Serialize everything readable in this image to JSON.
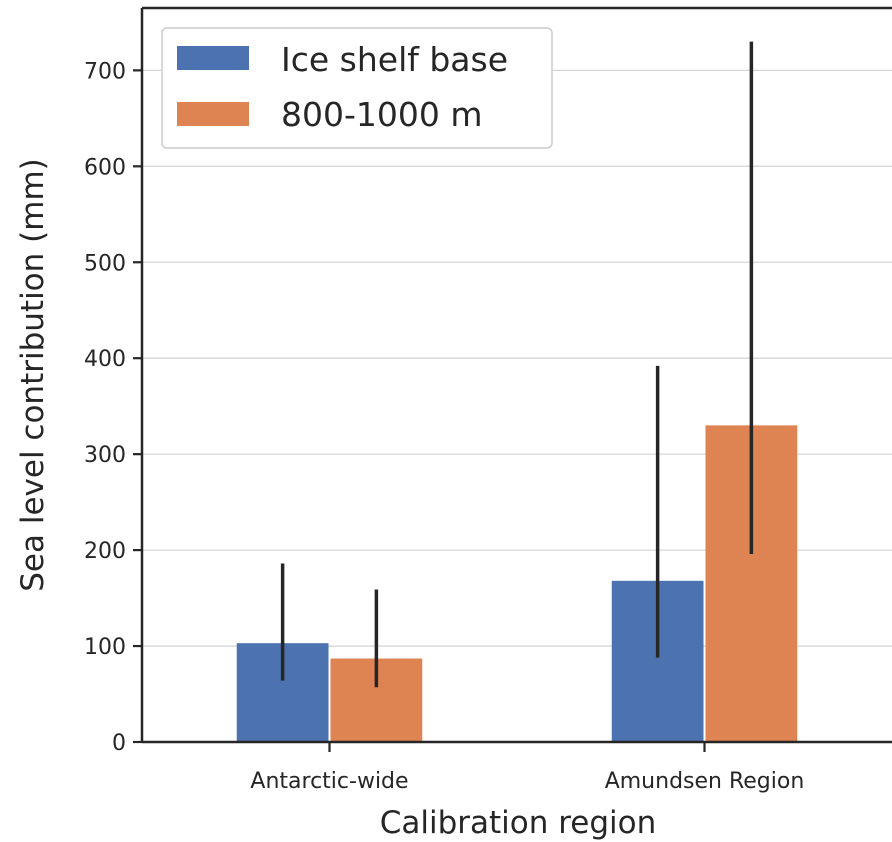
{
  "chart_data": {
    "type": "bar",
    "title": "",
    "xlabel": "Calibration region",
    "ylabel": "Sea level contribution (mm)",
    "categories": [
      "Antarctic-wide",
      "Amundsen Region"
    ],
    "series": [
      {
        "name": "Ice shelf base",
        "values": [
          103,
          168
        ],
        "err_low": [
          64,
          88
        ],
        "err_high": [
          186,
          392
        ],
        "color": "#4c72b0"
      },
      {
        "name": "800-1000 m",
        "values": [
          87,
          330
        ],
        "err_low": [
          57,
          196
        ],
        "err_high": [
          159,
          730
        ],
        "color": "#dd8452"
      }
    ],
    "ylim": [
      0,
      765
    ],
    "yticks": [
      0,
      100,
      200,
      300,
      400,
      500,
      600,
      700
    ],
    "grid": "horizontal",
    "legend": "top-left"
  }
}
